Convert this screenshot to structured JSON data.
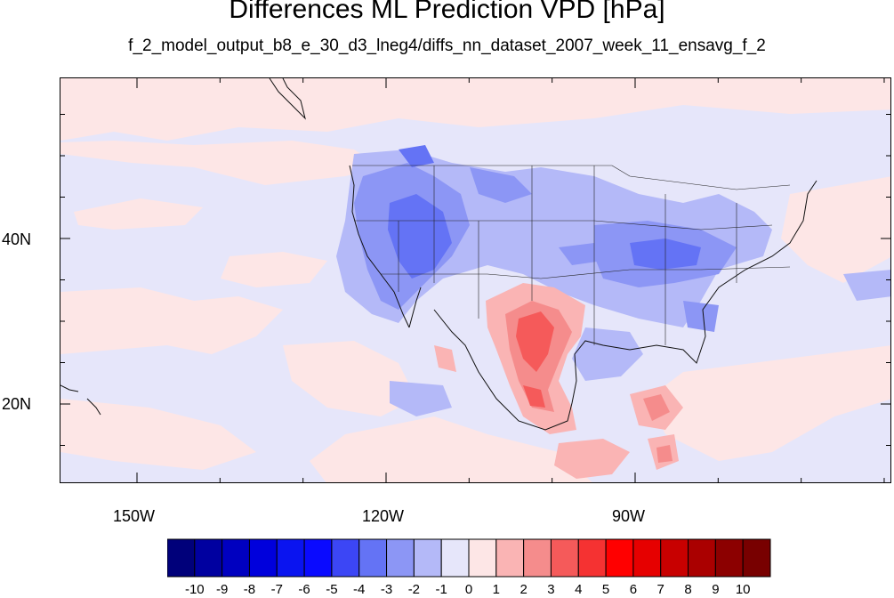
{
  "title": "Differences ML Prediction VPD [hPa]",
  "subtitle": "f_2_model_output_b8_e_30_d3_lneg4/diffs_nn_dataset_2007_week_11_ensavg_f_2",
  "lon_labels": [
    "150W",
    "120W",
    "90W"
  ],
  "lat_labels": [
    "40N",
    "20N"
  ],
  "colorbar": {
    "labels": [
      "-10",
      "-9",
      "-8",
      "-7",
      "-6",
      "-5",
      "-4",
      "-3",
      "-2",
      "-1",
      "0",
      "1",
      "2",
      "3",
      "4",
      "5",
      "6",
      "7",
      "8",
      "9",
      "10"
    ],
    "colors": [
      "#00007a",
      "#0000a0",
      "#0000c0",
      "#0000dc",
      "#0a14f0",
      "#0a0aff",
      "#3c46f5",
      "#6473f5",
      "#8c96f5",
      "#b4b9f8",
      "#e6e6fa",
      "#fde6e6",
      "#fab4b4",
      "#f58c8c",
      "#f55a5a",
      "#f53232",
      "#ff0000",
      "#e60000",
      "#c80000",
      "#aa0000",
      "#8c0000",
      "#780000"
    ]
  },
  "map_colors": {
    "background": "#e6e6fa",
    "light_red": "#fde6e6",
    "red_1": "#fab4b4",
    "red_2": "#f58c8c",
    "red_3": "#f55a5a",
    "blue_1": "#b4b9f8",
    "blue_2": "#8c96f5",
    "blue_3": "#6473f5"
  }
}
